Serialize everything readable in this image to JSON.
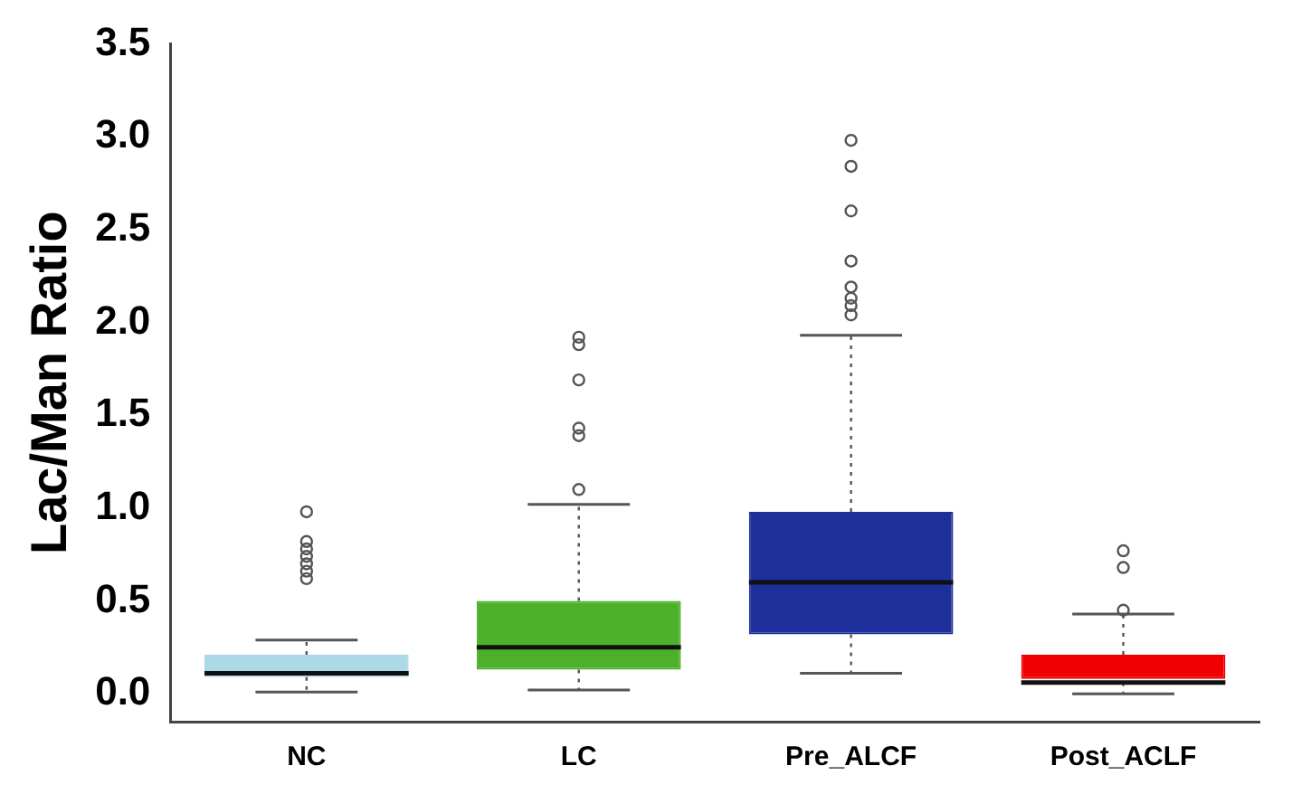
{
  "chart_data": {
    "type": "box",
    "ylabel": "Lac/Man Ratio",
    "categories": [
      "NC",
      "LC",
      "Pre_ALCF",
      "Post_ACLF"
    ],
    "colors": [
      "#add8e6",
      "#4cb02a",
      "#1f2f9a",
      "#f00000"
    ],
    "boxes": [
      {
        "low": 0.01,
        "q1": 0.09,
        "median": 0.11,
        "q3": 0.21,
        "high": 0.29,
        "outliers": [
          0.98,
          0.82,
          0.78,
          0.74,
          0.7,
          0.66,
          0.62
        ]
      },
      {
        "low": 0.02,
        "q1": 0.13,
        "median": 0.25,
        "q3": 0.5,
        "high": 1.02,
        "outliers": [
          1.1,
          1.39,
          1.43,
          1.69,
          1.88,
          1.92
        ]
      },
      {
        "low": 0.11,
        "q1": 0.32,
        "median": 0.6,
        "q3": 0.98,
        "high": 1.93,
        "outliers": [
          2.04,
          2.09,
          2.13,
          2.19,
          2.33,
          2.6,
          2.84,
          2.98
        ]
      },
      {
        "low": 0.0,
        "q1": 0.08,
        "median": 0.06,
        "q3": 0.21,
        "high": 0.43,
        "outliers": [
          0.45,
          0.68,
          0.77
        ]
      }
    ],
    "ylim": [
      -0.15,
      3.5
    ],
    "yticks": [
      {
        "value": 0,
        "label": "0.0"
      },
      0.5,
      {
        "value": 1,
        "label": "1.0"
      },
      1.5,
      {
        "value": 2,
        "label": "2.0"
      },
      2.5,
      {
        "value": 3,
        "label": "3.0"
      },
      3.5
    ],
    "grid": false,
    "legend": false
  }
}
